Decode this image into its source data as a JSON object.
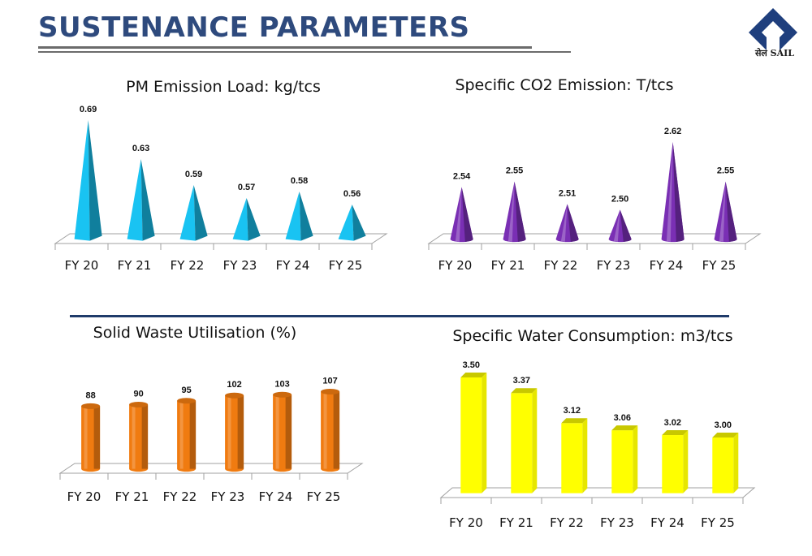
{
  "page": {
    "title": "SUSTENANCE PARAMETERS"
  },
  "logo": {
    "text": "सेल SAIL",
    "color": "#1f3f7d"
  },
  "chart_data": [
    {
      "id": "pm",
      "type": "bar",
      "mark": "pyramid",
      "title": "PM Emission Load: kg/tcs",
      "categories": [
        "FY 20",
        "FY 21",
        "FY 22",
        "FY 23",
        "FY 24",
        "FY 25"
      ],
      "values": [
        0.69,
        0.63,
        0.59,
        0.57,
        0.58,
        0.56
      ],
      "labels": [
        "0.69",
        "0.63",
        "0.59",
        "0.57",
        "0.58",
        "0.56"
      ],
      "color": "#19c3f2",
      "ylim": [
        0.5,
        0.7
      ]
    },
    {
      "id": "co2",
      "type": "bar",
      "mark": "cone",
      "title": "Specific CO2 Emission: T/tcs",
      "categories": [
        "FY 20",
        "FY 21",
        "FY 22",
        "FY 23",
        "FY 24",
        "FY 25"
      ],
      "values": [
        2.54,
        2.55,
        2.51,
        2.5,
        2.62,
        2.55
      ],
      "labels": [
        "2.54",
        "2.55",
        "2.51",
        "2.50",
        "2.62",
        "2.55"
      ],
      "color": "#7a2fb4",
      "ylim": [
        2.44,
        2.63
      ]
    },
    {
      "id": "waste",
      "type": "bar",
      "mark": "cylinder",
      "title": "Solid Waste Utilisation (%)",
      "categories": [
        "FY 20",
        "FY 21",
        "FY 22",
        "FY 23",
        "FY 24",
        "FY 25"
      ],
      "values": [
        88,
        90,
        95,
        102,
        103,
        107
      ],
      "labels": [
        "88",
        "90",
        "95",
        "102",
        "103",
        "107"
      ],
      "color": "#f07b10",
      "ylim": [
        0,
        115
      ]
    },
    {
      "id": "water",
      "type": "bar",
      "mark": "box",
      "title": "Specific Water Consumption: m3/tcs",
      "categories": [
        "FY 20",
        "FY 21",
        "FY 22",
        "FY 23",
        "FY 24",
        "FY 25"
      ],
      "values": [
        3.5,
        3.37,
        3.12,
        3.06,
        3.02,
        3.0
      ],
      "labels": [
        "3.50",
        "3.37",
        "3.12",
        "3.06",
        "3.02",
        "3.00"
      ],
      "color": "#ffff00",
      "ylim": [
        2.5,
        3.52
      ]
    }
  ]
}
